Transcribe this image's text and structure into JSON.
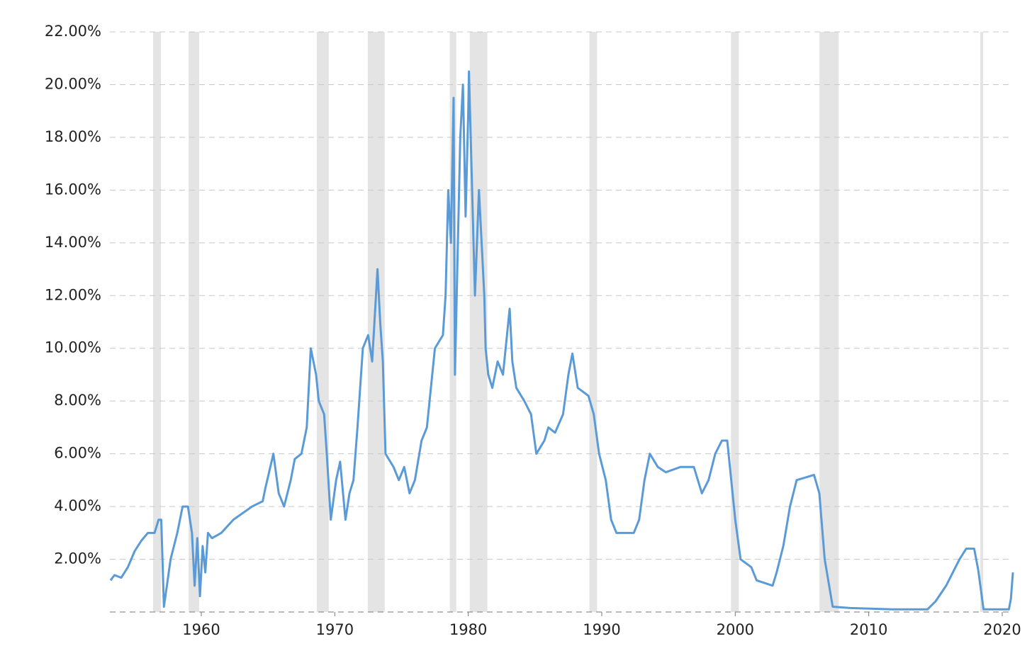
{
  "chart_data": {
    "type": "line",
    "x": [
      1953.2,
      1953.5,
      1954.0,
      1954.5,
      1955.0,
      1955.5,
      1956.0,
      1956.5,
      1956.8,
      1957.0,
      1957.2,
      1957.7,
      1958.2,
      1958.6,
      1959.0,
      1959.3,
      1959.5,
      1959.7,
      1959.9,
      1960.1,
      1960.3,
      1960.5,
      1960.8,
      1961.5,
      1962.4,
      1963.8,
      1964.6,
      1964.8,
      1965.4,
      1965.8,
      1966.2,
      1966.7,
      1967.0,
      1967.5,
      1967.9,
      1968.2,
      1968.6,
      1968.8,
      1969.2,
      1969.4,
      1969.7,
      1970.1,
      1970.4,
      1970.8,
      1971.1,
      1971.4,
      1971.7,
      1972.1,
      1972.5,
      1972.8,
      1973.2,
      1973.4,
      1973.6,
      1973.8,
      1974.4,
      1974.8,
      1975.2,
      1975.6,
      1976.0,
      1976.5,
      1976.9,
      1977.1,
      1977.5,
      1978.1,
      1978.3,
      1978.5,
      1978.7,
      1978.9,
      1979.0,
      1979.4,
      1979.6,
      1979.8,
      1980.0,
      1980.05,
      1980.5,
      1980.8,
      1981.0,
      1981.2,
      1981.3,
      1981.5,
      1981.8,
      1982.2,
      1982.6,
      1983.1,
      1983.3,
      1983.6,
      1984.2,
      1984.7,
      1985.1,
      1985.7,
      1986.0,
      1986.5,
      1987.1,
      1987.5,
      1987.8,
      1988.2,
      1989.0,
      1989.4,
      1989.8,
      1990.3,
      1990.7,
      1991.1,
      1992.4,
      1992.8,
      1993.2,
      1993.6,
      1994.2,
      1994.8,
      1995.9,
      1996.9,
      1997.5,
      1998.0,
      1998.5,
      1999.0,
      1999.4,
      1999.7,
      2000.0,
      2000.4,
      2001.2,
      2001.6,
      2002.8,
      2003.1,
      2003.6,
      2004.1,
      2004.6,
      2005.9,
      2006.3,
      2006.7,
      2007.3,
      2008.6,
      2011.8,
      2014.4,
      2015.0,
      2015.8,
      2016.8,
      2017.3,
      2017.9,
      2018.2,
      2018.6,
      2020.5,
      2020.65,
      2020.8
    ],
    "values": [
      1.2,
      1.4,
      1.3,
      1.7,
      2.3,
      2.7,
      3.0,
      3.0,
      3.5,
      3.5,
      0.2,
      2.0,
      3.0,
      4.0,
      4.0,
      3.0,
      1.0,
      2.8,
      0.6,
      2.5,
      1.5,
      3.0,
      2.8,
      3.0,
      3.5,
      4.0,
      4.2,
      4.7,
      6.0,
      4.5,
      4.0,
      5.0,
      5.8,
      6.0,
      7.0,
      10.0,
      9.0,
      8.0,
      7.5,
      6.0,
      3.5,
      5.0,
      5.7,
      3.5,
      4.5,
      5.0,
      7.0,
      10.0,
      10.5,
      9.5,
      13.0,
      11.0,
      9.5,
      6.0,
      5.5,
      5.0,
      5.5,
      4.5,
      5.0,
      6.5,
      7.0,
      8.0,
      10.0,
      10.5,
      12.0,
      16.0,
      14.0,
      19.5,
      9.0,
      18.0,
      20.0,
      15.0,
      19.0,
      20.5,
      12.0,
      16.0,
      14.0,
      12.0,
      10.0,
      9.0,
      8.5,
      9.5,
      9.0,
      11.5,
      9.5,
      8.5,
      8.0,
      7.5,
      6.0,
      6.5,
      7.0,
      6.8,
      7.5,
      9.0,
      9.8,
      8.5,
      8.2,
      7.5,
      6.0,
      5.0,
      3.5,
      3.0,
      3.0,
      3.5,
      5.0,
      6.0,
      5.5,
      5.3,
      5.5,
      5.5,
      4.5,
      5.0,
      6.0,
      6.5,
      6.5,
      5.0,
      3.5,
      2.0,
      1.7,
      1.2,
      1.0,
      1.5,
      2.5,
      4.0,
      5.0,
      5.2,
      4.5,
      2.0,
      0.2,
      0.15,
      0.1,
      0.1,
      0.4,
      1.0,
      2.0,
      2.4,
      2.4,
      1.6,
      0.1,
      0.1,
      0.5,
      1.5
    ],
    "color": "#5a9ad6",
    "recessions": [
      [
        1956.39,
        1956.98
      ],
      [
        1959.05,
        1959.84
      ],
      [
        1968.65,
        1969.55
      ],
      [
        1972.47,
        1973.74
      ],
      [
        1978.62,
        1979.1
      ],
      [
        1980.11,
        1981.43
      ],
      [
        1989.07,
        1989.65
      ],
      [
        1999.68,
        2000.27
      ],
      [
        2006.31,
        2007.75
      ],
      [
        2018.36,
        2018.57
      ]
    ],
    "recession_color": "#e4e4e4",
    "xlim": [
      1953.15,
      2020.85
    ],
    "xticks": [
      1960,
      1970,
      1980,
      1990,
      2000,
      2010,
      2020
    ],
    "ylim": [
      0,
      22
    ],
    "yticks": [
      {
        "value": 2,
        "label": "2.00%"
      },
      {
        "value": 4,
        "label": "4.00%"
      },
      {
        "value": 6,
        "label": "6.00%"
      },
      {
        "value": 8,
        "label": "8.00%"
      },
      {
        "value": 10,
        "label": "10.00%"
      },
      {
        "value": 12,
        "label": "12.00%"
      },
      {
        "value": 14,
        "label": "14.00%"
      },
      {
        "value": 16,
        "label": "16.00%"
      },
      {
        "value": 18,
        "label": "18.00%"
      },
      {
        "value": 20,
        "label": "20.00%"
      },
      {
        "value": 22,
        "label": "22.00%"
      }
    ],
    "grid": true
  }
}
